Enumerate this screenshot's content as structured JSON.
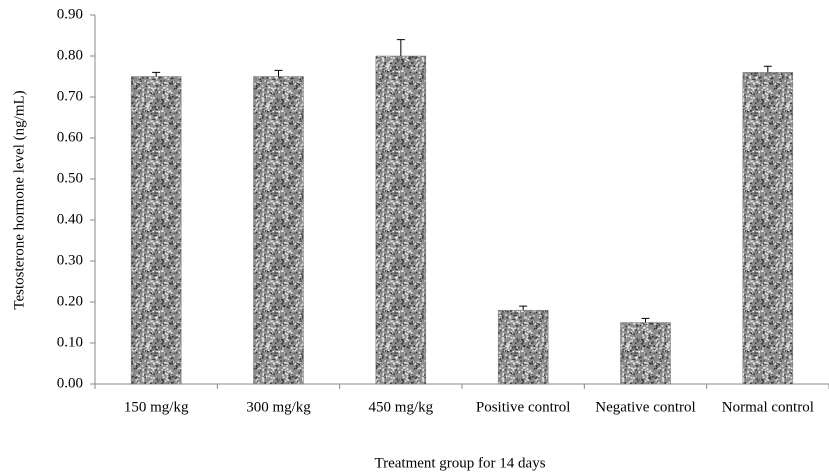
{
  "chart_data": {
    "type": "bar",
    "x_label": "Treatment group for 14 days",
    "y_label": "Testosterone hormone level (ng/mL)",
    "categories": [
      "150 mg/kg",
      "300 mg/kg",
      "450 mg/kg",
      "Positive control",
      "Negative control",
      "Normal control"
    ],
    "values": [
      0.75,
      0.75,
      0.8,
      0.18,
      0.15,
      0.76
    ],
    "errors": [
      0.01,
      0.015,
      0.04,
      0.01,
      0.01,
      0.015
    ],
    "color": "#8c8c8c",
    "ylim": [
      0,
      0.9
    ],
    "yticks": [
      {
        "value": 0,
        "label": "0.00"
      },
      {
        "value": 0.1,
        "label": "0.10"
      },
      {
        "value": 0.2,
        "label": "0.20"
      },
      {
        "value": 0.3,
        "label": "0.30"
      },
      {
        "value": 0.4,
        "label": "0.40"
      },
      {
        "value": 0.5,
        "label": "0.50"
      },
      {
        "value": 0.6,
        "label": "0.60"
      },
      {
        "value": 0.7,
        "label": "0.70"
      },
      {
        "value": 0.8,
        "label": "0.80"
      },
      {
        "value": 0.9,
        "label": "0.90"
      }
    ],
    "grid": false
  }
}
